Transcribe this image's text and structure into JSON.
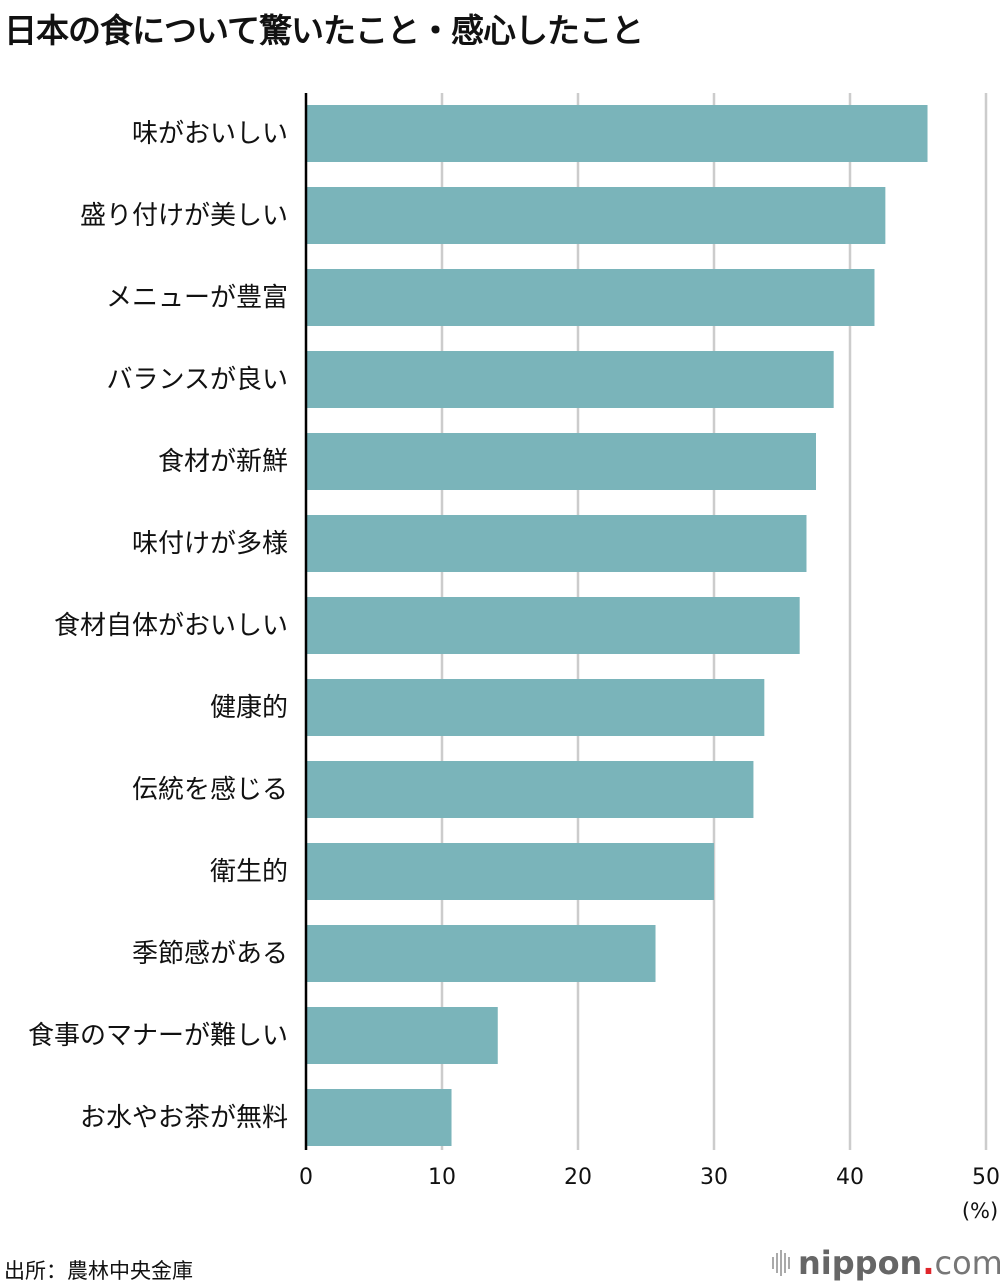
{
  "title": "日本の食について驚いたこと・感心したこと",
  "source": "出所：農林中央金庫",
  "logo": {
    "name": "nippon",
    "dot": ".",
    "tld": "com"
  },
  "colors": {
    "bar": "#7ab4ba",
    "grid": "#cccccc",
    "axis": "#000000",
    "logo_dot": "#e0252b"
  },
  "chart_data": {
    "type": "bar",
    "orientation": "horizontal",
    "title": "日本の食について驚いたこと・感心したこと",
    "categories": [
      "味がおいしい",
      "盛り付けが美しい",
      "メニューが豊富",
      "バランスが良い",
      "食材が新鮮",
      "味付けが多様",
      "食材自体がおいしい",
      "健康的",
      "伝統を感じる",
      "衛生的",
      "季節感がある",
      "食事のマナーが難しい",
      "お水やお茶が無料"
    ],
    "values": [
      45.7,
      42.6,
      41.8,
      38.8,
      37.5,
      36.8,
      36.3,
      33.7,
      32.9,
      30.0,
      25.7,
      14.1,
      10.7
    ],
    "xlim": [
      0,
      50
    ],
    "xticks": [
      "0",
      "10",
      "20",
      "30",
      "40",
      "50"
    ],
    "xunit": "(%)",
    "grid": true
  }
}
